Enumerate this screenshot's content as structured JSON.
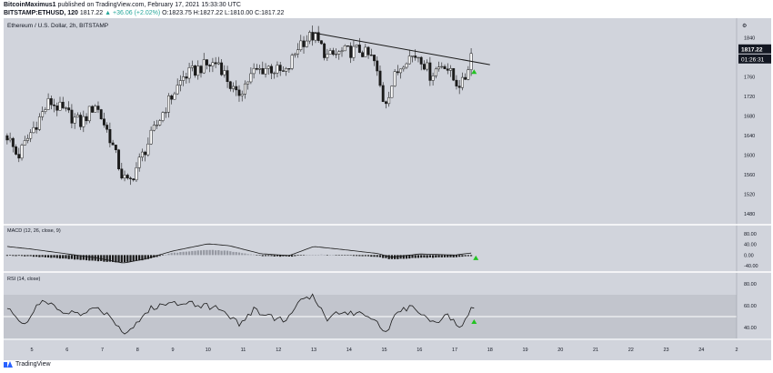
{
  "header": {
    "author": "BitcoinMaximus1",
    "published_text": "published on TradingView.com, February 17, 2021 15:33:30 UTC",
    "symbol": "BITSTAMP:ETHUSD, 120",
    "price": "1817.22",
    "change": "▲ +36.06 (+2.02%)",
    "ohlc": "O:1823.75 H:1827.22 L:1810.00 C:1817.22"
  },
  "footer": {
    "brand": "TradingView"
  },
  "colors": {
    "panel_bg": "#d1d4dc",
    "band": "#c2c5cd",
    "candle": "#1a1a1a",
    "trendline": "#1a1a1a",
    "arrow": "#22c322",
    "price_label_bg": "#131722"
  },
  "icons": {
    "tradingview_logo": "tradingview-logo-icon",
    "settings": "gear-icon"
  },
  "chart_data": [
    {
      "type": "candlestick",
      "title": "Ethereum / U.S. Dollar, 2h, BITSTAMP",
      "y_axis": {
        "ticks": [
          1480,
          1520,
          1560,
          1600,
          1640,
          1680,
          1720,
          1760,
          1800,
          1840
        ],
        "range": [
          1460,
          1880
        ]
      },
      "x_axis": {
        "ticks": [
          "5",
          "6",
          "7",
          "8",
          "9",
          "10",
          "11",
          "12",
          "13",
          "14",
          "15",
          "16",
          "17",
          "18",
          "19",
          "20",
          "21",
          "22",
          "23",
          "24",
          "2"
        ],
        "range": [
          4.2,
          25
        ]
      },
      "last_price": "1817.22",
      "countdown": "01:26:31",
      "anchors": [
        {
          "d": 4.3,
          "p": 1640
        },
        {
          "d": 4.6,
          "p": 1596
        },
        {
          "d": 5.0,
          "p": 1650
        },
        {
          "d": 5.5,
          "p": 1710
        },
        {
          "d": 5.9,
          "p": 1690
        },
        {
          "d": 6.4,
          "p": 1665
        },
        {
          "d": 6.8,
          "p": 1705
        },
        {
          "d": 7.2,
          "p": 1640
        },
        {
          "d": 7.55,
          "p": 1560
        },
        {
          "d": 7.75,
          "p": 1540
        },
        {
          "d": 8.0,
          "p": 1580
        },
        {
          "d": 8.4,
          "p": 1640
        },
        {
          "d": 8.8,
          "p": 1700
        },
        {
          "d": 9.3,
          "p": 1760
        },
        {
          "d": 9.8,
          "p": 1780
        },
        {
          "d": 10.3,
          "p": 1790
        },
        {
          "d": 10.8,
          "p": 1720
        },
        {
          "d": 11.3,
          "p": 1770
        },
        {
          "d": 11.7,
          "p": 1780
        },
        {
          "d": 12.2,
          "p": 1765
        },
        {
          "d": 12.6,
          "p": 1830
        },
        {
          "d": 13.0,
          "p": 1845
        },
        {
          "d": 13.4,
          "p": 1800
        },
        {
          "d": 13.8,
          "p": 1810
        },
        {
          "d": 14.3,
          "p": 1815
        },
        {
          "d": 14.7,
          "p": 1795
        },
        {
          "d": 15.0,
          "p": 1705
        },
        {
          "d": 15.3,
          "p": 1760
        },
        {
          "d": 15.6,
          "p": 1800
        },
        {
          "d": 16.0,
          "p": 1805
        },
        {
          "d": 16.3,
          "p": 1765
        },
        {
          "d": 16.7,
          "p": 1790
        },
        {
          "d": 17.0,
          "p": 1750
        },
        {
          "d": 17.25,
          "p": 1745
        },
        {
          "d": 17.5,
          "p": 1817
        }
      ],
      "trendline": [
        {
          "d": 13.0,
          "p": 1850
        },
        {
          "d": 18.0,
          "p": 1785
        }
      ],
      "signal_arrow": {
        "d": 17.55,
        "p": 1770
      }
    },
    {
      "type": "line",
      "title": "MACD (12, 26, close, 9)",
      "y_axis": {
        "ticks": [
          "80.00",
          "40.00",
          "0.00",
          "-40.00"
        ],
        "range": [
          -60,
          110
        ]
      },
      "anchors": [
        {
          "d": 4.3,
          "h": -2,
          "l": 32
        },
        {
          "d": 5.0,
          "h": -5,
          "l": 22
        },
        {
          "d": 5.8,
          "h": -12,
          "l": 8
        },
        {
          "d": 6.8,
          "h": -22,
          "l": -10
        },
        {
          "d": 7.6,
          "h": -28,
          "l": -30
        },
        {
          "d": 8.2,
          "h": -18,
          "l": -15
        },
        {
          "d": 9.0,
          "h": 8,
          "l": 15
        },
        {
          "d": 10.0,
          "h": 20,
          "l": 42
        },
        {
          "d": 10.6,
          "h": 15,
          "l": 35
        },
        {
          "d": 11.5,
          "h": -3,
          "l": 5
        },
        {
          "d": 12.3,
          "h": -6,
          "l": -2
        },
        {
          "d": 13.0,
          "h": 2,
          "l": 32
        },
        {
          "d": 14.0,
          "h": -2,
          "l": 18
        },
        {
          "d": 14.8,
          "h": -6,
          "l": 6
        },
        {
          "d": 15.2,
          "h": -16,
          "l": -8
        },
        {
          "d": 16.0,
          "h": -10,
          "l": 4
        },
        {
          "d": 17.0,
          "h": -9,
          "l": 0
        },
        {
          "d": 17.5,
          "h": -3,
          "l": 8
        }
      ],
      "signal_arrow": {
        "d": 17.6,
        "v": -12
      }
    },
    {
      "type": "line",
      "title": "RSI (14, close)",
      "y_axis": {
        "ticks": [
          "80.00",
          "60.00",
          "40.00"
        ],
        "range": [
          30,
          90
        ],
        "band": [
          30,
          70
        ]
      },
      "anchors": [
        {
          "d": 4.3,
          "v": 57
        },
        {
          "d": 4.8,
          "v": 44
        },
        {
          "d": 5.3,
          "v": 65
        },
        {
          "d": 5.8,
          "v": 55
        },
        {
          "d": 6.4,
          "v": 52
        },
        {
          "d": 6.9,
          "v": 58
        },
        {
          "d": 7.3,
          "v": 48
        },
        {
          "d": 7.6,
          "v": 35
        },
        {
          "d": 7.9,
          "v": 42
        },
        {
          "d": 8.4,
          "v": 58
        },
        {
          "d": 8.9,
          "v": 62
        },
        {
          "d": 9.4,
          "v": 64
        },
        {
          "d": 9.9,
          "v": 60
        },
        {
          "d": 10.4,
          "v": 57
        },
        {
          "d": 10.9,
          "v": 43
        },
        {
          "d": 11.3,
          "v": 56
        },
        {
          "d": 11.8,
          "v": 50
        },
        {
          "d": 12.2,
          "v": 46
        },
        {
          "d": 12.6,
          "v": 64
        },
        {
          "d": 13.0,
          "v": 68
        },
        {
          "d": 13.4,
          "v": 48
        },
        {
          "d": 13.8,
          "v": 55
        },
        {
          "d": 14.3,
          "v": 53
        },
        {
          "d": 14.7,
          "v": 50
        },
        {
          "d": 15.0,
          "v": 35
        },
        {
          "d": 15.3,
          "v": 49
        },
        {
          "d": 15.6,
          "v": 58
        },
        {
          "d": 16.0,
          "v": 56
        },
        {
          "d": 16.4,
          "v": 44
        },
        {
          "d": 16.8,
          "v": 52
        },
        {
          "d": 17.1,
          "v": 40
        },
        {
          "d": 17.3,
          "v": 45
        },
        {
          "d": 17.5,
          "v": 62
        },
        {
          "d": 17.6,
          "v": 58
        }
      ],
      "signal_arrow": {
        "d": 17.55,
        "v": 45
      }
    }
  ]
}
